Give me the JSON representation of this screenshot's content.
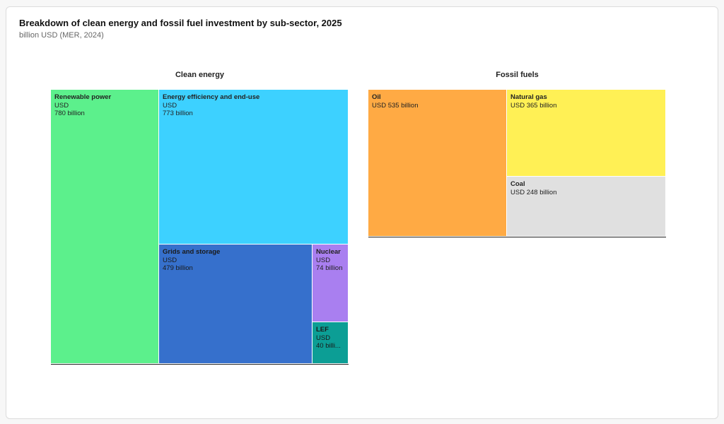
{
  "title": "Breakdown of clean energy and fossil fuel investment by sub-sector, 2025",
  "subtitle": "billion USD (MER, 2024)",
  "chart_data": [
    {
      "type": "treemap",
      "title": "Clean energy",
      "items": [
        {
          "name": "Renewable power",
          "unit": "USD",
          "value": 780,
          "label": "780 billion",
          "color": "#5cf08c"
        },
        {
          "name": "Energy efficiency and end-use",
          "unit": "USD",
          "value": 773,
          "label": "773 billion",
          "color": "#3dd1ff"
        },
        {
          "name": "Grids and storage",
          "unit": "USD",
          "value": 479,
          "label": "479 billion",
          "color": "#3670cc"
        },
        {
          "name": "Nuclear",
          "unit": "USD",
          "value": 74,
          "label": "74 billion",
          "color": "#a97ff0"
        },
        {
          "name": "LEF",
          "unit": "USD",
          "value": 40,
          "label": "40 billi...",
          "color": "#0c9e95"
        }
      ]
    },
    {
      "type": "treemap",
      "title": "Fossil fuels",
      "items": [
        {
          "name": "Oil",
          "unit": "USD",
          "value": 535,
          "label": "535 billion",
          "color": "#ffaa44"
        },
        {
          "name": "Natural gas",
          "unit": "USD",
          "value": 365,
          "label": "365 billion",
          "color": "#fff055"
        },
        {
          "name": "Coal",
          "unit": "USD",
          "value": 248,
          "label": "248 billion",
          "color": "#e0e0e0"
        }
      ]
    }
  ]
}
